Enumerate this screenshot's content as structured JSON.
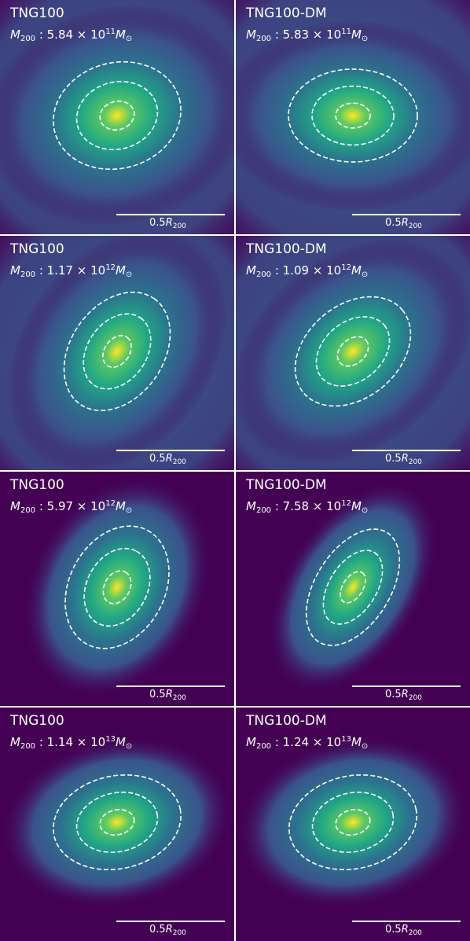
{
  "scale_bar": {
    "number": "0.5",
    "symbol": "R",
    "subscript": "200"
  },
  "panels": [
    {
      "sim": "TNG100",
      "mass_sym": "M",
      "mass_sub": "200",
      "mass_value": " : 5.84 × 10",
      "mass_exp": "11",
      "mass_unit": "M",
      "mass_unit_sub": "⊙",
      "background": "bright",
      "angle_deg": -15,
      "axis_ratio": 0.82
    },
    {
      "sim": "TNG100-DM",
      "mass_sym": "M",
      "mass_sub": "200",
      "mass_value": " : 5.83 × 10",
      "mass_exp": "11",
      "mass_unit": "M",
      "mass_unit_sub": "⊙",
      "background": "bright",
      "angle_deg": 0,
      "axis_ratio": 0.72
    },
    {
      "sim": "TNG100",
      "mass_sym": "M",
      "mass_sub": "200",
      "mass_value": " : 1.17 × 10",
      "mass_exp": "12",
      "mass_unit": "M",
      "mass_unit_sub": "⊙",
      "background": "bright",
      "angle_deg": -55,
      "axis_ratio": 0.72
    },
    {
      "sim": "TNG100-DM",
      "mass_sym": "M",
      "mass_sub": "200",
      "mass_value": " : 1.09 × 10",
      "mass_exp": "12",
      "mass_unit": "M",
      "mass_unit_sub": "⊙",
      "background": "bright",
      "angle_deg": -40,
      "axis_ratio": 0.72
    },
    {
      "sim": "TNG100",
      "mass_sym": "M",
      "mass_sub": "200",
      "mass_value": " : 5.97 × 10",
      "mass_exp": "12",
      "mass_unit": "M",
      "mass_unit_sub": "⊙",
      "background": "dark",
      "angle_deg": -62,
      "axis_ratio": 0.74
    },
    {
      "sim": "TNG100-DM",
      "mass_sym": "M",
      "mass_sub": "200",
      "mass_value": " : 7.58 × 10",
      "mass_exp": "12",
      "mass_unit": "M",
      "mass_unit_sub": "⊙",
      "background": "dark",
      "angle_deg": -58,
      "axis_ratio": 0.58
    },
    {
      "sim": "TNG100",
      "mass_sym": "M",
      "mass_sub": "200",
      "mass_value": " : 1.14 × 10",
      "mass_exp": "13",
      "mass_unit": "M",
      "mass_unit_sub": "⊙",
      "background": "dark",
      "angle_deg": -12,
      "axis_ratio": 0.72
    },
    {
      "sim": "TNG100-DM",
      "mass_sym": "M",
      "mass_sub": "200",
      "mass_value": " : 1.24 × 10",
      "mass_exp": "13",
      "mass_unit": "M",
      "mass_unit_sub": "⊙",
      "background": "dark",
      "angle_deg": -12,
      "axis_ratio": 0.72
    }
  ],
  "colors": {
    "viridis_dark": "#440154",
    "viridis_mid": "#2c728e",
    "viridis_green": "#5ec962",
    "viridis_yellow": "#fde725",
    "contour": "#ffffff"
  }
}
